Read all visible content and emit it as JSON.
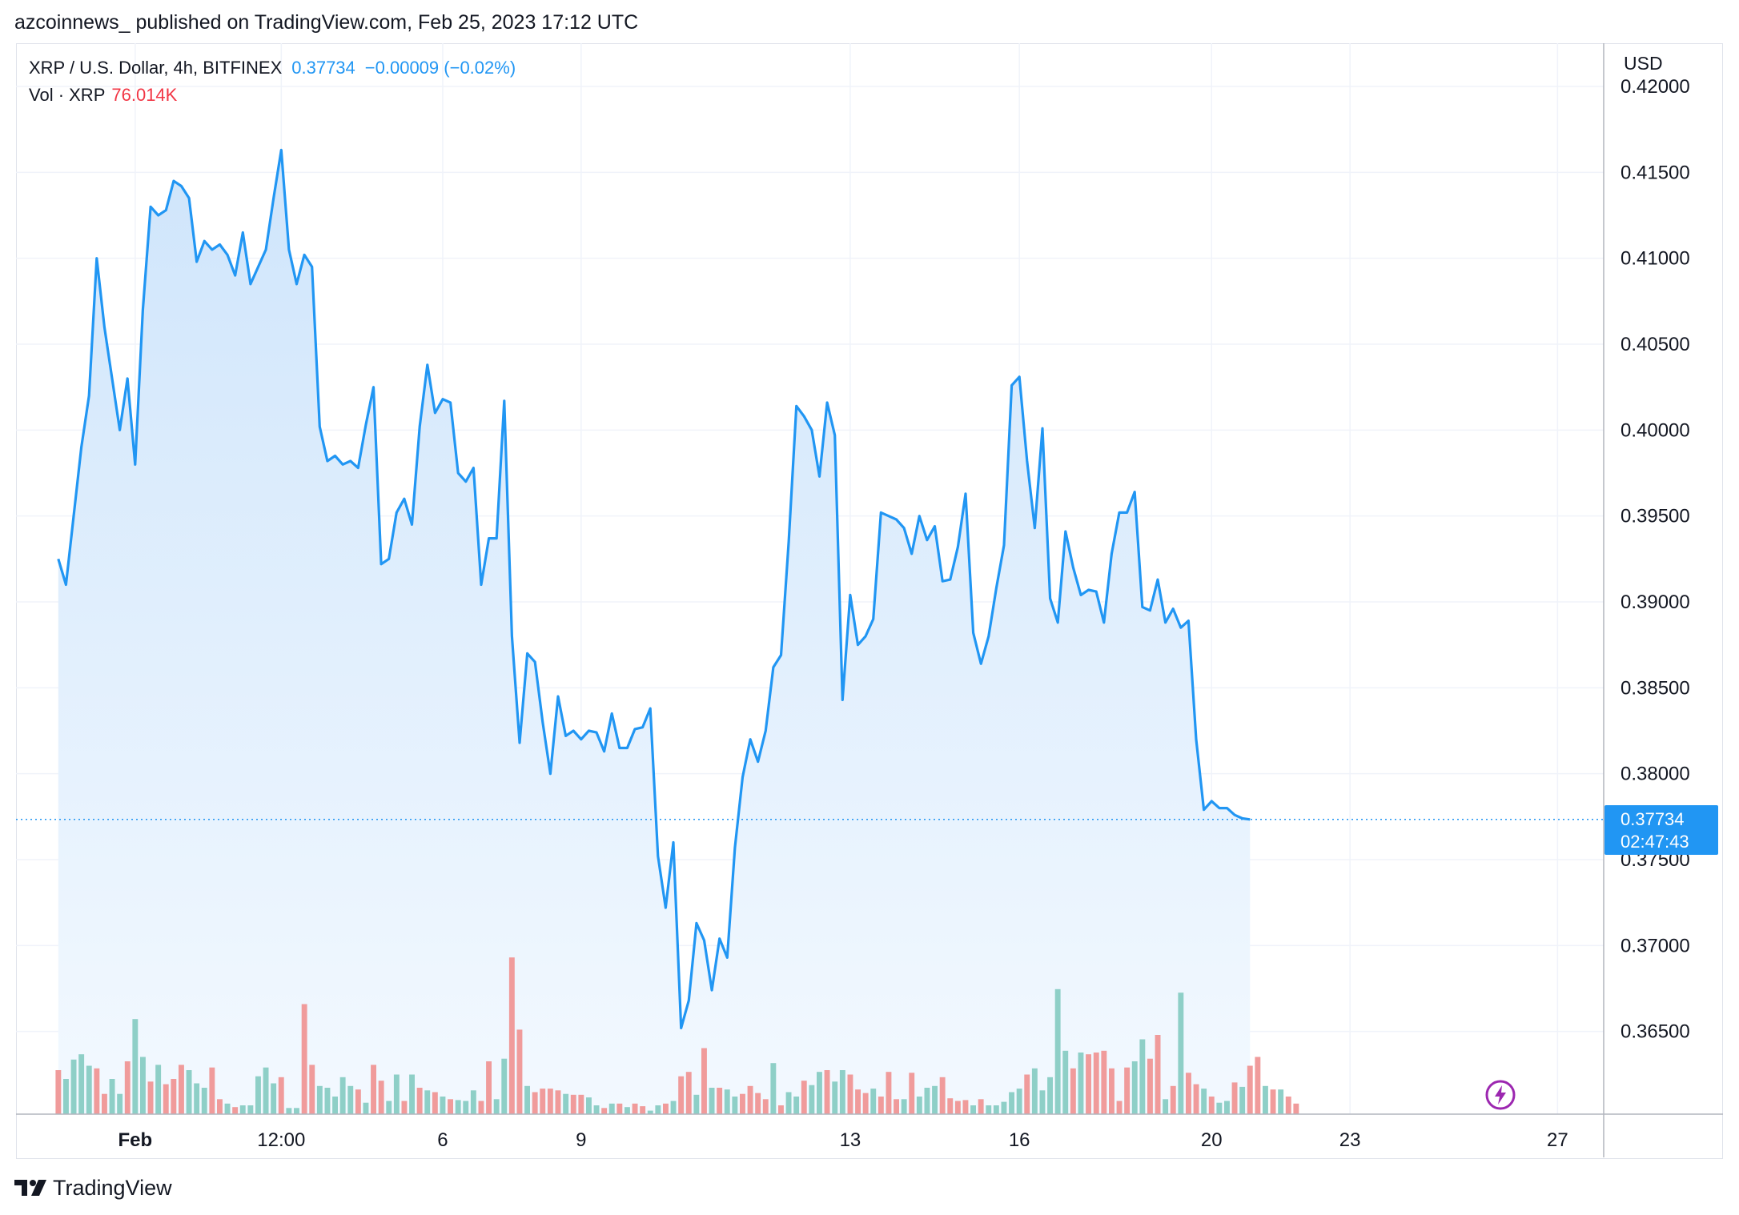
{
  "header": {
    "published_line": "azcoinnews_ published on TradingView.com, Feb 25, 2023 17:12 UTC"
  },
  "legend": {
    "symbol": "XRP / U.S. Dollar, 4h, BITFINEX",
    "price": "0.37734",
    "change": "−0.00009 (−0.02%)",
    "vol_label": "Vol · XRP",
    "vol_value": "76.014K"
  },
  "axis": {
    "currency": "USD"
  },
  "price_tag": {
    "price": "0.37734",
    "countdown": "02:47:43"
  },
  "footer": {
    "brand": "TradingView"
  },
  "icons": {
    "logo": "tradingview-logo-icon",
    "bolt": "lightning-bolt-icon"
  },
  "colors": {
    "line": "#2196f3",
    "area_top": "#cfe5fb",
    "area_bottom": "#f3f9ff",
    "vol_up": "#8ecfc7",
    "vol_down": "#f09b9b",
    "grid": "#f0f3fa",
    "bolt": "#9c27b0"
  },
  "chart_data": {
    "type": "area",
    "title": "XRP / U.S. Dollar, 4h, BITFINEX",
    "ylabel": "USD",
    "ylim": [
      0.36,
      0.42
    ],
    "grid": true,
    "ytick_labels": [
      "0.42000",
      "0.41500",
      "0.41000",
      "0.40500",
      "0.40000",
      "0.39500",
      "0.39000",
      "0.38500",
      "0.38000",
      "0.37500",
      "0.37000",
      "0.36500"
    ],
    "ytick_values": [
      0.42,
      0.415,
      0.41,
      0.405,
      0.4,
      0.395,
      0.39,
      0.385,
      0.38,
      0.375,
      0.37,
      0.365
    ],
    "xtick_labels": [
      "Feb",
      "12:00",
      "6",
      "9",
      "13",
      "16",
      "20",
      "23",
      "27"
    ],
    "xtick_bars": [
      10,
      29,
      50,
      68,
      103,
      125,
      150,
      168,
      195
    ],
    "last_price": 0.37734,
    "x_range_bars": [
      -5.5,
      201
    ],
    "price_series": [
      0.3925,
      0.391,
      0.395,
      0.399,
      0.402,
      0.41,
      0.406,
      0.403,
      0.4,
      0.403,
      0.398,
      0.407,
      0.413,
      0.4125,
      0.4128,
      0.4145,
      0.4142,
      0.4135,
      0.4098,
      0.411,
      0.4105,
      0.4108,
      0.4102,
      0.409,
      0.4115,
      0.4085,
      0.4095,
      0.4105,
      0.4135,
      0.4163,
      0.4105,
      0.4085,
      0.4102,
      0.4095,
      0.4002,
      0.3982,
      0.3985,
      0.398,
      0.3982,
      0.3978,
      0.4003,
      0.4025,
      0.3922,
      0.3925,
      0.3952,
      0.396,
      0.3945,
      0.4002,
      0.4038,
      0.401,
      0.4018,
      0.4016,
      0.3975,
      0.397,
      0.3978,
      0.391,
      0.3937,
      0.3937,
      0.4017,
      0.388,
      0.3818,
      0.387,
      0.3865,
      0.383,
      0.38,
      0.3845,
      0.3822,
      0.3825,
      0.382,
      0.3825,
      0.3824,
      0.3813,
      0.3835,
      0.3815,
      0.3815,
      0.3826,
      0.3827,
      0.3838,
      0.3752,
      0.3722,
      0.376,
      0.3652,
      0.3668,
      0.3713,
      0.3703,
      0.3674,
      0.3704,
      0.3693,
      0.3757,
      0.3798,
      0.382,
      0.3807,
      0.3825,
      0.3862,
      0.3869,
      0.3935,
      0.4014,
      0.4008,
      0.4,
      0.3973,
      0.4016,
      0.3997,
      0.3843,
      0.3904,
      0.3875,
      0.388,
      0.389,
      0.3952,
      0.395,
      0.3948,
      0.3943,
      0.3928,
      0.395,
      0.3936,
      0.3944,
      0.3912,
      0.3913,
      0.3932,
      0.3963,
      0.3882,
      0.3864,
      0.388,
      0.3908,
      0.3933,
      0.4026,
      0.4031,
      0.3982,
      0.3943,
      0.4001,
      0.3902,
      0.3888,
      0.3941,
      0.392,
      0.3904,
      0.3907,
      0.3906,
      0.3888,
      0.3928,
      0.3952,
      0.3952,
      0.3964,
      0.3897,
      0.3895,
      0.3913,
      0.3888,
      0.3896,
      0.3885,
      0.3889,
      0.382,
      0.3779,
      0.3784,
      0.378,
      0.378,
      0.3776,
      0.3774,
      0.37734
    ],
    "volume_series": [
      [
        50,
        "down"
      ],
      [
        40,
        "up"
      ],
      [
        62,
        "up"
      ],
      [
        68,
        "up"
      ],
      [
        55,
        "up"
      ],
      [
        52,
        "down"
      ],
      [
        23,
        "down"
      ],
      [
        40,
        "up"
      ],
      [
        23,
        "up"
      ],
      [
        60,
        "down"
      ],
      [
        108,
        "up"
      ],
      [
        65,
        "up"
      ],
      [
        37,
        "down"
      ],
      [
        56,
        "up"
      ],
      [
        34,
        "down"
      ],
      [
        40,
        "down"
      ],
      [
        56,
        "down"
      ],
      [
        50,
        "up"
      ],
      [
        35,
        "up"
      ],
      [
        30,
        "up"
      ],
      [
        53,
        "down"
      ],
      [
        17,
        "down"
      ],
      [
        12,
        "up"
      ],
      [
        8,
        "down"
      ],
      [
        10,
        "up"
      ],
      [
        10,
        "up"
      ],
      [
        43,
        "up"
      ],
      [
        53,
        "up"
      ],
      [
        35,
        "up"
      ],
      [
        42,
        "down"
      ],
      [
        7,
        "up"
      ],
      [
        7,
        "up"
      ],
      [
        125,
        "down"
      ],
      [
        56,
        "down"
      ],
      [
        32,
        "up"
      ],
      [
        30,
        "up"
      ],
      [
        20,
        "up"
      ],
      [
        42,
        "up"
      ],
      [
        32,
        "up"
      ],
      [
        28,
        "down"
      ],
      [
        13,
        "up"
      ],
      [
        56,
        "down"
      ],
      [
        38,
        "down"
      ],
      [
        15,
        "up"
      ],
      [
        45,
        "up"
      ],
      [
        15,
        "down"
      ],
      [
        45,
        "up"
      ],
      [
        30,
        "down"
      ],
      [
        27,
        "up"
      ],
      [
        25,
        "down"
      ],
      [
        20,
        "up"
      ],
      [
        17,
        "down"
      ],
      [
        16,
        "up"
      ],
      [
        15,
        "up"
      ],
      [
        27,
        "up"
      ],
      [
        15,
        "down"
      ],
      [
        60,
        "down"
      ],
      [
        17,
        "up"
      ],
      [
        63,
        "up"
      ],
      [
        178,
        "down"
      ],
      [
        96,
        "down"
      ],
      [
        32,
        "up"
      ],
      [
        25,
        "down"
      ],
      [
        29,
        "down"
      ],
      [
        29,
        "down"
      ],
      [
        27,
        "down"
      ],
      [
        23,
        "up"
      ],
      [
        22,
        "down"
      ],
      [
        22,
        "down"
      ],
      [
        19,
        "up"
      ],
      [
        10,
        "up"
      ],
      [
        7,
        "down"
      ],
      [
        12,
        "up"
      ],
      [
        12,
        "down"
      ],
      [
        8,
        "up"
      ],
      [
        12,
        "down"
      ],
      [
        9,
        "down"
      ],
      [
        4,
        "up"
      ],
      [
        10,
        "up"
      ],
      [
        12,
        "down"
      ],
      [
        15,
        "up"
      ],
      [
        43,
        "down"
      ],
      [
        48,
        "down"
      ],
      [
        22,
        "up"
      ],
      [
        75,
        "down"
      ],
      [
        30,
        "up"
      ],
      [
        30,
        "down"
      ],
      [
        28,
        "up"
      ],
      [
        20,
        "up"
      ],
      [
        23,
        "down"
      ],
      [
        32,
        "down"
      ],
      [
        24,
        "down"
      ],
      [
        17,
        "down"
      ],
      [
        58,
        "up"
      ],
      [
        10,
        "down"
      ],
      [
        25,
        "up"
      ],
      [
        20,
        "up"
      ],
      [
        38,
        "down"
      ],
      [
        33,
        "up"
      ],
      [
        48,
        "up"
      ],
      [
        50,
        "down"
      ],
      [
        37,
        "up"
      ],
      [
        50,
        "up"
      ],
      [
        45,
        "down"
      ],
      [
        28,
        "down"
      ],
      [
        24,
        "down"
      ],
      [
        29,
        "up"
      ],
      [
        20,
        "down"
      ],
      [
        48,
        "down"
      ],
      [
        17,
        "down"
      ],
      [
        17,
        "up"
      ],
      [
        47,
        "down"
      ],
      [
        20,
        "up"
      ],
      [
        30,
        "up"
      ],
      [
        32,
        "up"
      ],
      [
        42,
        "down"
      ],
      [
        18,
        "down"
      ],
      [
        15,
        "down"
      ],
      [
        16,
        "down"
      ],
      [
        10,
        "up"
      ],
      [
        17,
        "down"
      ],
      [
        10,
        "up"
      ],
      [
        10,
        "up"
      ],
      [
        14,
        "up"
      ],
      [
        25,
        "up"
      ],
      [
        29,
        "up"
      ],
      [
        45,
        "down"
      ],
      [
        52,
        "up"
      ],
      [
        27,
        "up"
      ],
      [
        42,
        "up"
      ],
      [
        142,
        "up"
      ],
      [
        72,
        "up"
      ],
      [
        52,
        "down"
      ],
      [
        70,
        "up"
      ],
      [
        68,
        "down"
      ],
      [
        70,
        "down"
      ],
      [
        72,
        "down"
      ],
      [
        52,
        "down"
      ],
      [
        15,
        "down"
      ],
      [
        53,
        "down"
      ],
      [
        60,
        "up"
      ],
      [
        85,
        "up"
      ],
      [
        63,
        "down"
      ],
      [
        90,
        "down"
      ],
      [
        17,
        "up"
      ],
      [
        32,
        "down"
      ],
      [
        138,
        "up"
      ],
      [
        47,
        "down"
      ],
      [
        34,
        "down"
      ],
      [
        29,
        "up"
      ],
      [
        20,
        "down"
      ],
      [
        13,
        "up"
      ],
      [
        15,
        "up"
      ],
      [
        36,
        "down"
      ],
      [
        31,
        "up"
      ],
      [
        55,
        "down"
      ],
      [
        65,
        "down"
      ],
      [
        32,
        "up"
      ],
      [
        28,
        "down"
      ],
      [
        28,
        "up"
      ],
      [
        20,
        "down"
      ],
      [
        12,
        "down"
      ]
    ]
  }
}
